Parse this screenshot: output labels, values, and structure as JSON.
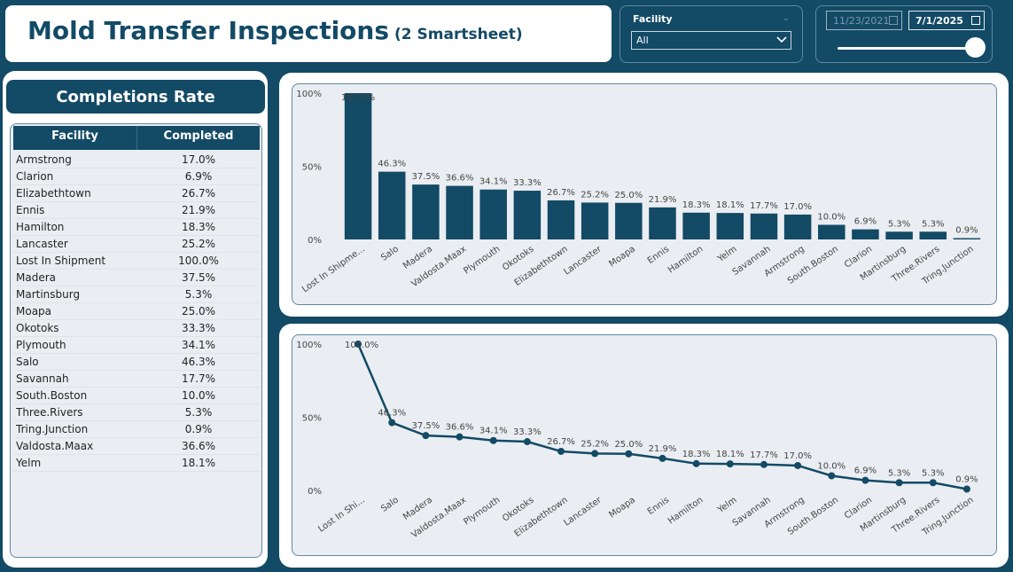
{
  "header": {
    "title": "Mold Transfer Inspections",
    "subtitle": "(2 Smartsheet)"
  },
  "filters": {
    "facility": {
      "label": "Facility",
      "value": "All"
    },
    "date": {
      "start": "11/23/2021",
      "end": "7/1/2025"
    }
  },
  "completions": {
    "title": "Completions Rate",
    "columns": [
      "Facility",
      "Completed"
    ],
    "rows": [
      {
        "facility": "Armstrong",
        "completed": "17.0%"
      },
      {
        "facility": "Clarion",
        "completed": "6.9%"
      },
      {
        "facility": "Elizabethtown",
        "completed": "26.7%"
      },
      {
        "facility": "Ennis",
        "completed": "21.9%"
      },
      {
        "facility": "Hamilton",
        "completed": "18.3%"
      },
      {
        "facility": "Lancaster",
        "completed": "25.2%"
      },
      {
        "facility": "Lost In Shipment",
        "completed": "100.0%"
      },
      {
        "facility": "Madera",
        "completed": "37.5%"
      },
      {
        "facility": "Martinsburg",
        "completed": "5.3%"
      },
      {
        "facility": "Moapa",
        "completed": "25.0%"
      },
      {
        "facility": "Okotoks",
        "completed": "33.3%"
      },
      {
        "facility": "Plymouth",
        "completed": "34.1%"
      },
      {
        "facility": "Salo",
        "completed": "46.3%"
      },
      {
        "facility": "Savannah",
        "completed": "17.7%"
      },
      {
        "facility": "South.Boston",
        "completed": "10.0%"
      },
      {
        "facility": "Three.Rivers",
        "completed": "5.3%"
      },
      {
        "facility": "Tring.Junction",
        "completed": "0.9%"
      },
      {
        "facility": "Valdosta.Maax",
        "completed": "36.6%"
      },
      {
        "facility": "Yelm",
        "completed": "18.1%"
      }
    ]
  },
  "chart_data": [
    {
      "type": "bar",
      "categories": [
        "Lost In Shipme...",
        "Salo",
        "Madera",
        "Valdosta.Maax",
        "Plymouth",
        "Okotoks",
        "Elizabethtown",
        "Lancaster",
        "Moapa",
        "Ennis",
        "Hamilton",
        "Yelm",
        "Savannah",
        "Armstrong",
        "South.Boston",
        "Clarion",
        "Martinsburg",
        "Three.Rivers",
        "Tring.Junction"
      ],
      "values": [
        100.0,
        46.3,
        37.5,
        36.6,
        34.1,
        33.3,
        26.7,
        25.2,
        25.0,
        21.9,
        18.3,
        18.1,
        17.7,
        17.0,
        10.0,
        6.9,
        5.3,
        5.3,
        0.9
      ],
      "data_labels": [
        "100.0%",
        "46.3%",
        "37.5%",
        "36.6%",
        "34.1%",
        "33.3%",
        "26.7%",
        "25.2%",
        "25.0%",
        "21.9%",
        "18.3%",
        "18.1%",
        "17.7%",
        "17.0%",
        "10.0%",
        "6.9%",
        "5.3%",
        "5.3%",
        "0.9%"
      ],
      "yticks": [
        "0%",
        "50%",
        "100%"
      ],
      "ylim": [
        0,
        100
      ],
      "color": "#134a66",
      "grid": false
    },
    {
      "type": "line",
      "categories": [
        "Lost In Shi...",
        "Salo",
        "Madera",
        "Valdosta.Maax",
        "Plymouth",
        "Okotoks",
        "Elizabethtown",
        "Lancaster",
        "Moapa",
        "Ennis",
        "Hamilton",
        "Yelm",
        "Savannah",
        "Armstrong",
        "South.Boston",
        "Clarion",
        "Martinsburg",
        "Three.Rivers",
        "Tring.Junction"
      ],
      "values": [
        100.0,
        46.3,
        37.5,
        36.6,
        34.1,
        33.3,
        26.7,
        25.2,
        25.0,
        21.9,
        18.3,
        18.1,
        17.7,
        17.0,
        10.0,
        6.9,
        5.3,
        5.3,
        0.9
      ],
      "data_labels": [
        "100.0%",
        "46.3%",
        "37.5%",
        "36.6%",
        "34.1%",
        "33.3%",
        "26.7%",
        "25.2%",
        "25.0%",
        "21.9%",
        "18.3%",
        "18.1%",
        "17.7%",
        "17.0%",
        "10.0%",
        "6.9%",
        "5.3%",
        "5.3%",
        "0.9%"
      ],
      "yticks": [
        "0%",
        "50%",
        "100%"
      ],
      "ylim": [
        0,
        100
      ],
      "color": "#134a66",
      "grid": false
    }
  ]
}
